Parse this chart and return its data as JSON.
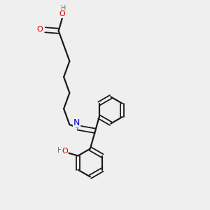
{
  "background": "#efefef",
  "bond_color": "#1a1a1a",
  "atom_colors": {
    "O": "#cc0000",
    "N": "#0000cc",
    "H": "#707070",
    "C": "#1a1a1a"
  },
  "figsize": [
    3.0,
    3.0
  ],
  "dpi": 100
}
